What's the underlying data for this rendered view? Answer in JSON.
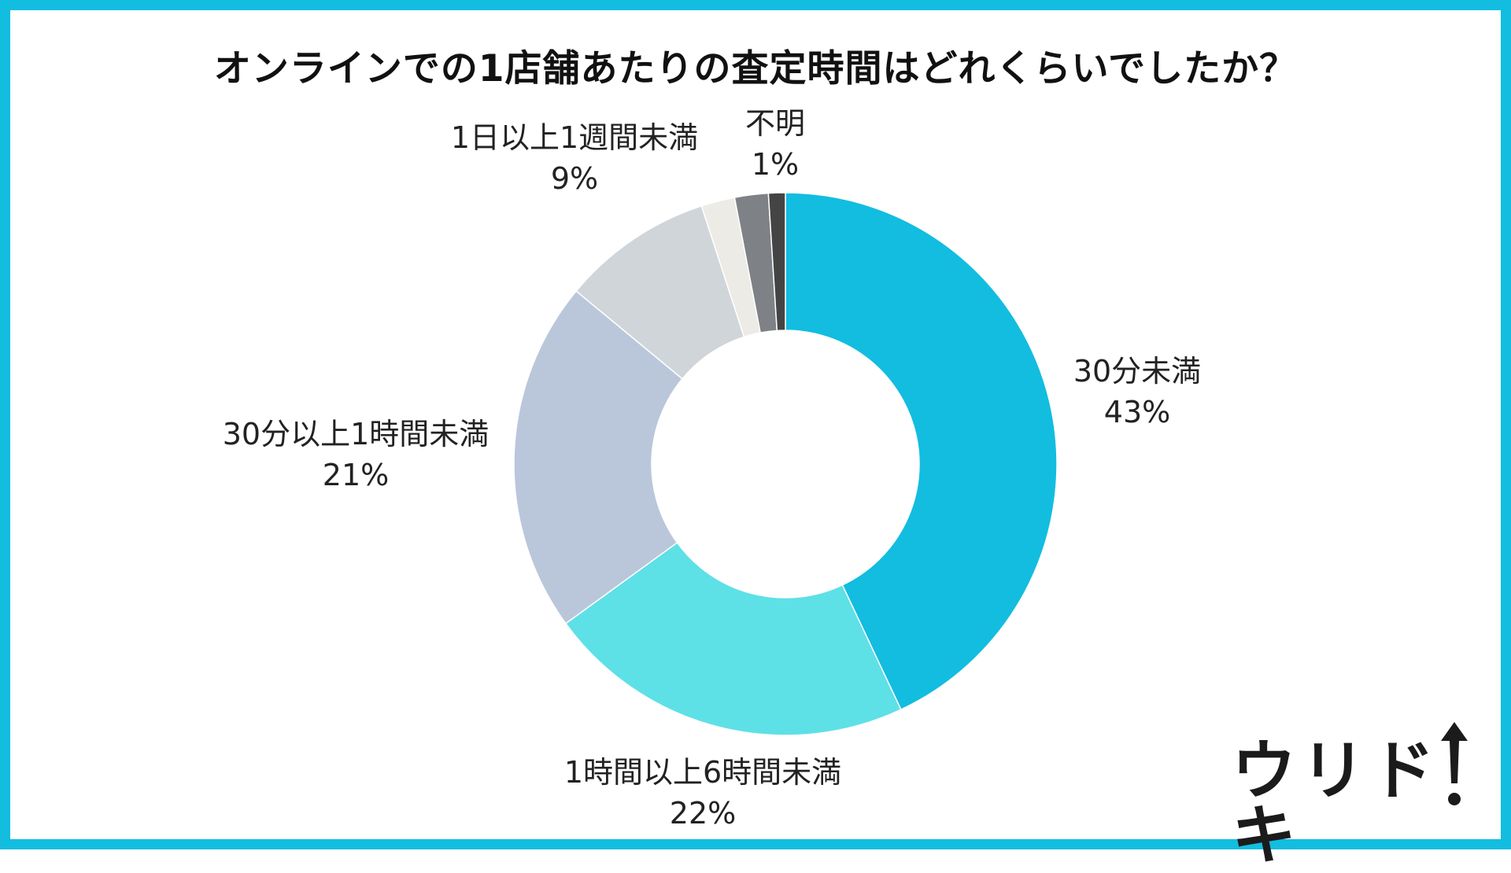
{
  "chart_data": {
    "type": "pie",
    "variant": "donut",
    "title": "オンラインでの1店舗あたりの査定時間はどれくらいでしたか？",
    "slices": [
      {
        "label": "30分未満",
        "value": 43,
        "value_label": "43%",
        "color": "#12bde0"
      },
      {
        "label": "1時間以上6時間未満",
        "value": 22,
        "value_label": "22%",
        "color": "#5ee0e7"
      },
      {
        "label": "30分以上1時間未満",
        "value": 21,
        "value_label": "21%",
        "color": "#bac7da"
      },
      {
        "label": "1日以上1週間未満",
        "value": 9,
        "value_label": "9%",
        "color": "#d0d5d9"
      },
      {
        "label": "",
        "value": 2,
        "value_label": "",
        "color": "#ecebe6"
      },
      {
        "label": "",
        "value": 2,
        "value_label": "",
        "color": "#7e8185"
      },
      {
        "label": "不明",
        "value": 1,
        "value_label": "1%",
        "color": "#444444"
      }
    ],
    "start_angle_deg": 0,
    "direction": "clockwise"
  },
  "branding": {
    "logo_text": "ウリドキ"
  },
  "colors": {
    "frame": "#12bde0",
    "background": "#ffffff"
  }
}
